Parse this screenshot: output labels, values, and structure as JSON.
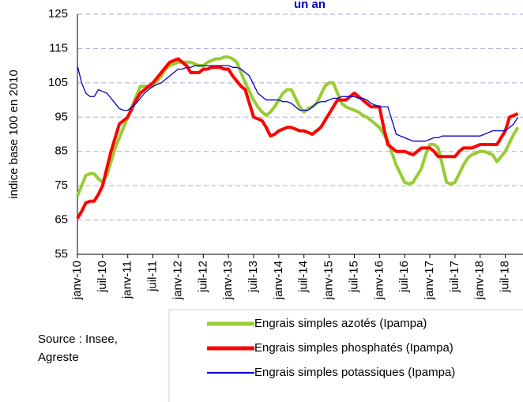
{
  "chart_data": {
    "type": "line",
    "title": "un an",
    "y_label": "indice base 100 en 2010",
    "source": [
      "Source : Insee,",
      "Agreste"
    ],
    "categories": [
      "janv-10",
      null,
      null,
      null,
      null,
      null,
      "juil-10",
      null,
      null,
      null,
      null,
      null,
      "janv-11",
      null,
      null,
      null,
      null,
      null,
      "juil-11",
      null,
      null,
      null,
      null,
      null,
      "janv-12",
      null,
      null,
      null,
      null,
      null,
      "juil-12",
      null,
      null,
      null,
      null,
      null,
      "janv-13",
      null,
      null,
      null,
      null,
      null,
      "juil-13",
      null,
      null,
      null,
      null,
      null,
      "janv-14",
      null,
      null,
      null,
      null,
      null,
      "juil-14",
      null,
      null,
      null,
      null,
      null,
      "janv-15",
      null,
      null,
      null,
      null,
      null,
      "juil-15",
      null,
      null,
      null,
      null,
      null,
      "janv-16",
      null,
      null,
      null,
      null,
      null,
      "juil-16",
      null,
      null,
      null,
      null,
      null,
      "janv-17",
      null,
      null,
      null,
      null,
      null,
      "juil-17",
      null,
      null,
      null,
      null,
      null,
      "janv-18",
      null,
      null,
      null,
      null,
      null,
      "juil-18",
      null,
      null,
      null
    ],
    "series": [
      {
        "name": "Engrais simples azotés (Ipampa)",
        "color": "#99cc33",
        "width": 4,
        "values": [
          72,
          75,
          78,
          78.5,
          78.5,
          77,
          76,
          78,
          82,
          86,
          89,
          92,
          95,
          98,
          101,
          104,
          104,
          104,
          104,
          105.5,
          107,
          109,
          110,
          110.5,
          111,
          111,
          111,
          111,
          110.5,
          110,
          110,
          111,
          111.5,
          112,
          112,
          112.5,
          112.5,
          112,
          111,
          108,
          105,
          102.5,
          100,
          98,
          96.5,
          95.5,
          96.5,
          98,
          100,
          102,
          103,
          103,
          100.5,
          98,
          96.5,
          97.5,
          98,
          99,
          101.5,
          104,
          105,
          105,
          102,
          99,
          98,
          97.5,
          97,
          96.5,
          95.5,
          95,
          94,
          93,
          92,
          90,
          88,
          84.5,
          81,
          78.5,
          76,
          75.5,
          76,
          78,
          80,
          84,
          87,
          87,
          86,
          81,
          76,
          75.5,
          76,
          78.5,
          81,
          83,
          84,
          84.5,
          85,
          85,
          84.5,
          84,
          82,
          83.5,
          85,
          87.5,
          90,
          92
        ]
      },
      {
        "name": "Engrais simples phosphatés (Ipampa)",
        "color": "#ff0000",
        "width": 4,
        "values": [
          65.5,
          67.5,
          70,
          70.5,
          70.5,
          72.5,
          75,
          80,
          85,
          89,
          93,
          94,
          95,
          97.5,
          100,
          102,
          103,
          104,
          105,
          106.5,
          108,
          109.5,
          111,
          111.5,
          112,
          111,
          110,
          108,
          108,
          108,
          109,
          109,
          109.5,
          109.5,
          109.5,
          109,
          109,
          107,
          105.5,
          104,
          103,
          99,
          95,
          94.5,
          94,
          92,
          89.5,
          90,
          91,
          91.5,
          92,
          92,
          91.5,
          91,
          91,
          90.5,
          90,
          91,
          92,
          94,
          96,
          98,
          100,
          100,
          100,
          101,
          102,
          101,
          100,
          99,
          98,
          98,
          98,
          92,
          87,
          86,
          85,
          85,
          85,
          84.5,
          84,
          85,
          86,
          86,
          86,
          85,
          83.5,
          83.5,
          83.5,
          83.5,
          83.5,
          85,
          86,
          86,
          86,
          86.5,
          87,
          87,
          87,
          87,
          87,
          89,
          91,
          95,
          95.5,
          96
        ]
      },
      {
        "name": "Engrais simples potassiques (Ipampa)",
        "color": "#0000cc",
        "width": 1.3,
        "values": [
          110,
          105,
          102,
          101,
          101,
          103,
          102.5,
          102,
          100.5,
          99,
          97.5,
          97,
          97,
          98,
          99,
          100.5,
          102,
          103,
          104,
          104.5,
          105,
          106,
          107,
          108,
          109,
          109,
          109.5,
          109.5,
          110,
          110,
          110,
          110,
          110,
          110,
          110,
          110,
          110,
          109.5,
          109.5,
          109,
          108,
          107,
          104.5,
          102,
          101,
          100,
          100,
          100,
          100,
          99.5,
          99.5,
          99,
          98,
          97,
          97,
          97,
          98,
          99,
          99.5,
          99.5,
          100,
          100.5,
          100.5,
          101,
          101,
          101,
          101,
          100.5,
          100.5,
          100,
          99,
          98.5,
          98,
          98,
          98,
          94,
          90,
          89.5,
          89,
          88.5,
          88,
          88,
          88,
          88,
          88.5,
          89,
          89,
          89.5,
          89.5,
          89.5,
          89.5,
          89.5,
          89.5,
          89.5,
          89.5,
          89.5,
          89.5,
          90,
          90.5,
          91,
          91,
          91,
          91,
          92,
          93,
          95
        ]
      }
    ],
    "ylim": [
      55,
      125
    ],
    "yticks": [
      55,
      65,
      75,
      85,
      95,
      105,
      115,
      125
    ],
    "grid": true
  }
}
